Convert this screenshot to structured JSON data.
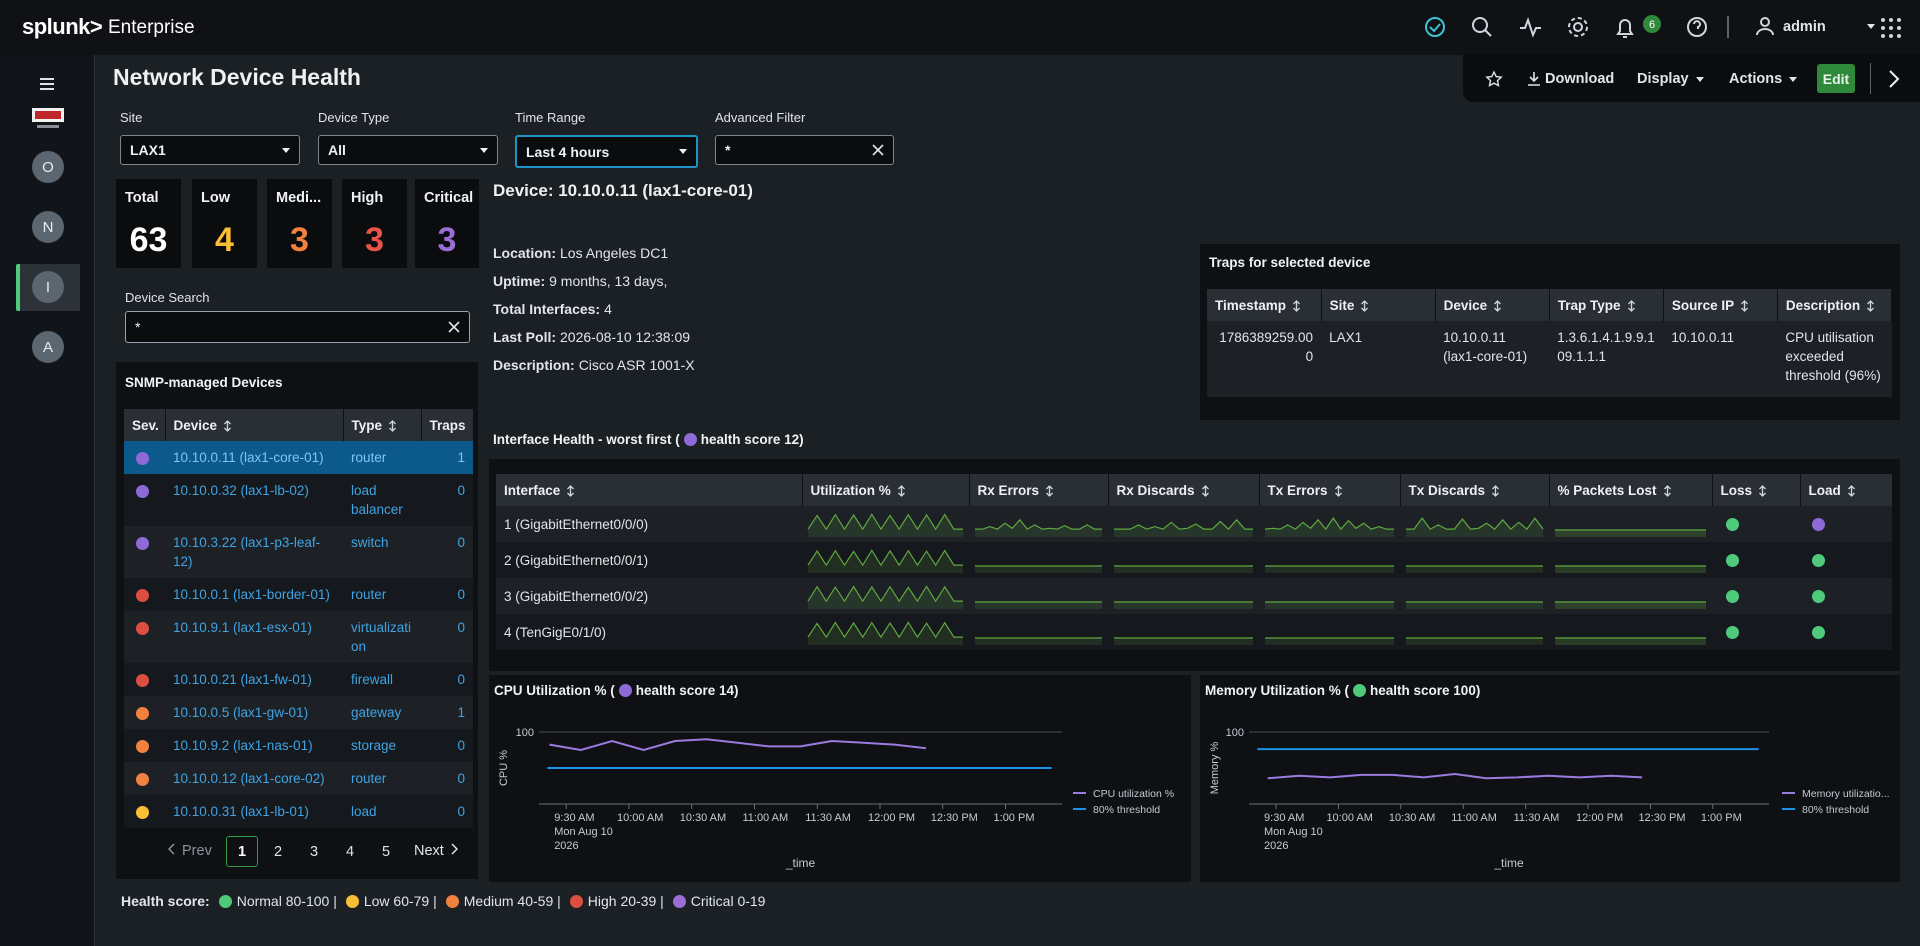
{
  "header": {
    "brand": "splunk>",
    "product": "Enterprise",
    "notifications": "6",
    "user": "admin"
  },
  "toolbar": {
    "download": "Download",
    "display": "Display",
    "actions": "Actions",
    "edit": "Edit"
  },
  "sidebar": {
    "apps": [
      "O",
      "N",
      "I",
      "A"
    ],
    "selected": 2
  },
  "title": "Network Device Health",
  "filters": {
    "focused": 2,
    "items": [
      {
        "label": "Site",
        "value": "LAX1",
        "kind": "dropdown"
      },
      {
        "label": "Device Type",
        "value": "All",
        "kind": "dropdown"
      },
      {
        "label": "Time Range",
        "value": "Last 4 hours",
        "kind": "dropdown"
      },
      {
        "label": "Advanced Filter",
        "value": "*",
        "kind": "text"
      }
    ]
  },
  "summary": [
    {
      "label": "Total",
      "value": 63,
      "color": "#ffffff"
    },
    {
      "label": "Low",
      "value": 4,
      "color": "#f8be34"
    },
    {
      "label": "Medi...",
      "value": 3,
      "color": "#f1813f"
    },
    {
      "label": "High",
      "value": 3,
      "color": "#e8534a"
    },
    {
      "label": "Critical",
      "value": 3,
      "color": "#9c6dd6"
    }
  ],
  "device_search": {
    "label": "Device Search",
    "value": "*"
  },
  "devices": {
    "title": "SNMP-managed Devices",
    "columns": [
      "Sev.",
      "Device",
      "Type",
      "Traps"
    ],
    "selected": 0,
    "rows": [
      {
        "color": "#8e6ad6",
        "device": "10.10.0.11 (lax1-core-01)",
        "type": "router",
        "traps": 1
      },
      {
        "color": "#8e6ad6",
        "device": "10.10.0.32 (lax1-lb-02)",
        "type": "load balancer",
        "traps": 0
      },
      {
        "color": "#8e6ad6",
        "device": "10.10.3.22 (lax1-p3-leaf-12)",
        "type": "switch",
        "traps": 0
      },
      {
        "color": "#dc4e41",
        "device": "10.10.0.1 (lax1-border-01)",
        "type": "router",
        "traps": 0
      },
      {
        "color": "#dc4e41",
        "device": "10.10.9.1 (lax1-esx-01)",
        "type": "virtualization",
        "traps": 0
      },
      {
        "color": "#dc4e41",
        "device": "10.10.0.21 (lax1-fw-01)",
        "type": "firewall",
        "traps": 0
      },
      {
        "color": "#f1813f",
        "device": "10.10.0.5 (lax1-gw-01)",
        "type": "gateway",
        "traps": 1
      },
      {
        "color": "#f1813f",
        "device": "10.10.9.2 (lax1-nas-01)",
        "type": "storage",
        "traps": 0
      },
      {
        "color": "#f1813f",
        "device": "10.10.0.12 (lax1-core-02)",
        "type": "router",
        "traps": 0
      },
      {
        "color": "#f8be34",
        "device": "10.10.0.31 (lax1-lb-01)",
        "type": "load",
        "traps": 0
      }
    ]
  },
  "pagination": {
    "prev": "Prev",
    "pages": [
      "1",
      "2",
      "3",
      "4",
      "5"
    ],
    "current": 0,
    "next": "Next"
  },
  "detail": {
    "title": "Device: 10.10.0.11 (lax1-core-01)",
    "fields": [
      {
        "label": "Location:",
        "value": "Los Angeles DC1"
      },
      {
        "label": "Uptime:",
        "value": "9 months, 13 days,"
      },
      {
        "label": "Total Interfaces:",
        "value": "4"
      },
      {
        "label": "Last Poll:",
        "value": "2026-08-10 12:38:09"
      },
      {
        "label": "Description:",
        "value": "Cisco ASR 1001-X"
      }
    ]
  },
  "traps": {
    "title": "Traps for selected device",
    "columns": [
      "Timestamp",
      "Site",
      "Device",
      "Trap Type",
      "Source IP",
      "Description"
    ],
    "rows": [
      [
        "1786389259.000",
        "LAX1",
        "10.10.0.11 (lax1-core-01)",
        "1.3.6.1.4.1.9.9.109.1.1.1",
        "10.10.0.11",
        "CPU utilisation exceeded threshold (96%)"
      ]
    ]
  },
  "interfaces": {
    "title": "Interface Health - worst first (",
    "score": "health score 12)",
    "score_color": "#8e6ad6",
    "columns": [
      "Interface",
      "Utilization %",
      "Rx Errors",
      "Rx Discards",
      "Tx Errors",
      "Tx Discards",
      "% Packets Lost",
      "Loss",
      "Load"
    ],
    "spark_ylim": [
      0,
      100
    ],
    "rows": [
      {
        "name": "1 (GigabitEthernet0/0/0)",
        "loss": "#4fca7b",
        "load": "#8e6ad6",
        "sparks": [
          [
            5,
            85,
            5,
            90,
            5,
            88,
            5,
            92,
            5,
            86,
            5,
            90,
            5,
            89,
            5,
            91,
            5,
            5
          ],
          [
            5,
            5,
            20,
            5,
            40,
            10,
            60,
            5,
            30,
            5,
            10,
            5,
            25,
            5,
            5,
            30,
            5,
            5
          ],
          [
            5,
            5,
            5,
            30,
            5,
            20,
            5,
            45,
            5,
            10,
            35,
            5,
            5,
            50,
            5,
            60,
            5,
            5
          ],
          [
            5,
            10,
            5,
            30,
            5,
            45,
            10,
            60,
            5,
            70,
            5,
            55,
            10,
            40,
            5,
            20,
            5,
            5
          ],
          [
            5,
            5,
            70,
            5,
            30,
            5,
            5,
            65,
            5,
            10,
            40,
            5,
            60,
            5,
            45,
            5,
            70,
            5
          ],
          [
            0,
            0,
            0,
            0,
            0,
            0,
            0,
            0,
            0,
            0,
            0,
            0,
            0,
            0,
            0,
            0,
            0,
            0
          ]
        ]
      },
      {
        "name": "2 (GigabitEthernet0/0/1)",
        "loss": "#4fca7b",
        "load": "#4fca7b",
        "sparks": [
          [
            5,
            88,
            5,
            90,
            5,
            86,
            5,
            92,
            5,
            89,
            5,
            90,
            5,
            87,
            5,
            91,
            5,
            5
          ],
          [
            0,
            0,
            0,
            0,
            0,
            0,
            0,
            0,
            0,
            0,
            0,
            0,
            0,
            0,
            0,
            0,
            0,
            0
          ],
          [
            0,
            0,
            0,
            0,
            0,
            0,
            0,
            0,
            0,
            0,
            0,
            0,
            0,
            0,
            0,
            0,
            0,
            0
          ],
          [
            0,
            0,
            0,
            0,
            0,
            0,
            0,
            0,
            0,
            0,
            0,
            0,
            0,
            0,
            0,
            0,
            0,
            0
          ],
          [
            0,
            0,
            0,
            0,
            0,
            0,
            0,
            0,
            0,
            0,
            0,
            0,
            0,
            0,
            0,
            0,
            0,
            0
          ],
          [
            0,
            0,
            0,
            0,
            0,
            0,
            0,
            0,
            0,
            0,
            0,
            0,
            0,
            0,
            0,
            0,
            0,
            0
          ]
        ]
      },
      {
        "name": "3 (GigabitEthernet0/0/2)",
        "loss": "#4fca7b",
        "load": "#4fca7b",
        "sparks": [
          [
            5,
            90,
            5,
            87,
            5,
            91,
            5,
            88,
            5,
            90,
            5,
            86,
            5,
            92,
            5,
            89,
            5,
            5
          ],
          [
            0,
            0,
            0,
            0,
            0,
            0,
            0,
            0,
            0,
            0,
            0,
            0,
            0,
            0,
            0,
            0,
            0,
            0
          ],
          [
            0,
            0,
            0,
            0,
            0,
            0,
            0,
            0,
            0,
            0,
            0,
            0,
            0,
            0,
            0,
            0,
            0,
            0
          ],
          [
            0,
            0,
            0,
            0,
            0,
            0,
            0,
            0,
            0,
            0,
            0,
            0,
            0,
            0,
            0,
            0,
            0,
            0
          ],
          [
            0,
            0,
            0,
            0,
            0,
            0,
            0,
            0,
            0,
            0,
            0,
            0,
            0,
            0,
            0,
            0,
            0,
            0
          ],
          [
            0,
            0,
            0,
            0,
            0,
            0,
            0,
            0,
            0,
            0,
            0,
            0,
            0,
            0,
            0,
            0,
            0,
            0
          ]
        ]
      },
      {
        "name": "4 (TenGigE0/1/0)",
        "loss": "#4fca7b",
        "load": "#4fca7b",
        "sparks": [
          [
            5,
            86,
            5,
            91,
            5,
            89,
            5,
            90,
            5,
            88,
            5,
            92,
            5,
            87,
            5,
            90,
            5,
            5
          ],
          [
            0,
            0,
            0,
            0,
            0,
            0,
            0,
            0,
            0,
            0,
            0,
            0,
            0,
            0,
            0,
            0,
            0,
            0
          ],
          [
            0,
            0,
            0,
            0,
            0,
            0,
            0,
            0,
            0,
            0,
            0,
            0,
            0,
            0,
            0,
            0,
            0,
            0
          ],
          [
            0,
            0,
            0,
            0,
            0,
            0,
            0,
            0,
            0,
            0,
            0,
            0,
            0,
            0,
            0,
            0,
            0,
            0
          ],
          [
            0,
            0,
            0,
            0,
            0,
            0,
            0,
            0,
            0,
            0,
            0,
            0,
            0,
            0,
            0,
            0,
            0,
            0
          ],
          [
            0,
            0,
            0,
            0,
            0,
            0,
            0,
            0,
            0,
            0,
            0,
            0,
            0,
            0,
            0,
            0,
            0,
            0
          ]
        ]
      }
    ]
  },
  "charts": [
    {
      "type": "line",
      "title": "CPU Utilization % (",
      "score": "health score 14)",
      "score_color": "#8e6ad6",
      "y_label": "CPU %",
      "x_label": "_time",
      "ylim": [
        60,
        100
      ],
      "yticks": [
        100
      ],
      "xlim": [
        "2026-08-10 09:17",
        "2026-08-10 13:27"
      ],
      "xticks": [
        {
          "value": "2026-08-10 09:30",
          "label": "9:30 AM"
        },
        {
          "value": "2026-08-10 10:00",
          "label": "10:00 AM"
        },
        {
          "value": "2026-08-10 10:30",
          "label": "10:30 AM"
        },
        {
          "value": "2026-08-10 11:00",
          "label": "11:00 AM"
        },
        {
          "value": "2026-08-10 11:30",
          "label": "11:30 AM"
        },
        {
          "value": "2026-08-10 12:00",
          "label": "12:00 PM"
        },
        {
          "value": "2026-08-10 12:30",
          "label": "12:30 PM"
        },
        {
          "value": "2026-08-10 13:00",
          "label": "1:00 PM"
        }
      ],
      "date_label": [
        "Mon Aug 10",
        "2026"
      ],
      "series": [
        {
          "name": "CPU utilization %",
          "color": "#9b7be0",
          "x": [
            "2026-08-10 09:22",
            "2026-08-10 09:37",
            "2026-08-10 09:52",
            "2026-08-10 10:07",
            "2026-08-10 10:22",
            "2026-08-10 10:37",
            "2026-08-10 10:52",
            "2026-08-10 11:07",
            "2026-08-10 11:22",
            "2026-08-10 11:37",
            "2026-08-10 11:52",
            "2026-08-10 12:07",
            "2026-08-10 12:22"
          ],
          "values": [
            93,
            90,
            95,
            90,
            95,
            96,
            94,
            92,
            92,
            95,
            94,
            93,
            91
          ]
        },
        {
          "name": "80% threshold",
          "color": "#1e93e6",
          "x": [
            "2026-08-10 09:21",
            "2026-08-10 13:22"
          ],
          "values": [
            80,
            80
          ]
        }
      ]
    },
    {
      "type": "line",
      "title": "Memory Utilization % (",
      "score": "health score 100)",
      "score_color": "#4fca7b",
      "y_label": "Memory %",
      "x_label": "_time",
      "ylim": [
        16,
        100
      ],
      "yticks": [
        100
      ],
      "xlim": [
        "2026-08-10 09:17",
        "2026-08-10 13:27"
      ],
      "xticks": [
        {
          "value": "2026-08-10 09:30",
          "label": "9:30 AM"
        },
        {
          "value": "2026-08-10 10:00",
          "label": "10:00 AM"
        },
        {
          "value": "2026-08-10 10:30",
          "label": "10:30 AM"
        },
        {
          "value": "2026-08-10 11:00",
          "label": "11:00 AM"
        },
        {
          "value": "2026-08-10 11:30",
          "label": "11:30 AM"
        },
        {
          "value": "2026-08-10 12:00",
          "label": "12:00 PM"
        },
        {
          "value": "2026-08-10 12:30",
          "label": "12:30 PM"
        },
        {
          "value": "2026-08-10 13:00",
          "label": "1:00 PM"
        }
      ],
      "date_label": [
        "Mon Aug 10",
        "2026"
      ],
      "series": [
        {
          "name": "Memory utilizatio...",
          "color": "#9b7be0",
          "x": [
            "2026-08-10 09:26",
            "2026-08-10 09:41",
            "2026-08-10 09:56",
            "2026-08-10 10:11",
            "2026-08-10 10:26",
            "2026-08-10 10:41",
            "2026-08-10 10:56",
            "2026-08-10 11:11",
            "2026-08-10 11:26",
            "2026-08-10 11:41",
            "2026-08-10 11:56",
            "2026-08-10 12:11",
            "2026-08-10 12:26"
          ],
          "values": [
            46,
            49,
            47,
            50,
            50,
            47,
            51,
            46,
            47,
            49,
            47,
            49,
            47
          ]
        },
        {
          "name": "80% threshold",
          "color": "#1e93e6",
          "x": [
            "2026-08-10 09:21",
            "2026-08-10 13:22"
          ],
          "values": [
            80,
            80
          ]
        }
      ]
    }
  ],
  "legend": {
    "label": "Health score:",
    "items": [
      {
        "label": "Normal 80-100 |",
        "color": "#4fca7b"
      },
      {
        "label": "Low 60-79 |",
        "color": "#f8be34"
      },
      {
        "label": "Medium 40-59 |",
        "color": "#f1813f"
      },
      {
        "label": "High 20-39 |",
        "color": "#dc4e41"
      },
      {
        "label": "Critical 0-19",
        "color": "#9c6dd6"
      }
    ]
  }
}
